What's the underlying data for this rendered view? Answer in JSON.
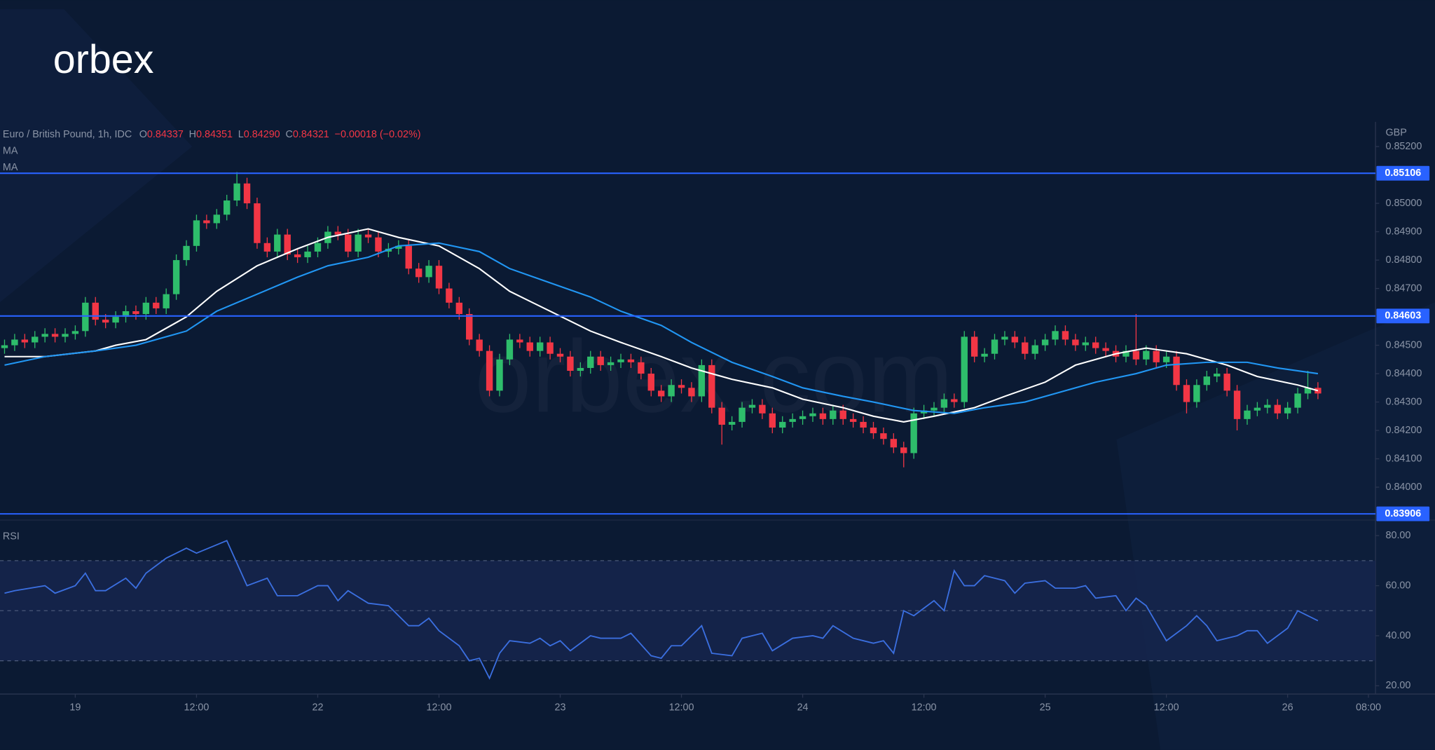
{
  "logo": "orbex",
  "watermark": "orbex.com",
  "chart_data": [
    {
      "type": "candlestick",
      "title": "Euro / British Pound, 1h, IDC",
      "readout": [
        {
          "label": "O",
          "value": "0.84337"
        },
        {
          "label": "H",
          "value": "0.84351"
        },
        {
          "label": "L",
          "value": "0.84290"
        },
        {
          "label": "C",
          "value": "0.84321"
        }
      ],
      "change": "−0.00018 (−0.02%)",
      "y_label": "GBP",
      "xlim": [
        -0.45,
        135.7
      ],
      "ylim": [
        0.83884,
        0.85287
      ],
      "yticks": [
        {
          "value": 0.852,
          "label": "0.85200"
        },
        {
          "value": 0.85,
          "label": "0.85000"
        },
        {
          "value": 0.849,
          "label": "0.84900"
        },
        {
          "value": 0.848,
          "label": "0.84800"
        },
        {
          "value": 0.847,
          "label": "0.84700"
        },
        {
          "value": 0.845,
          "label": "0.84500"
        },
        {
          "value": 0.844,
          "label": "0.84400"
        },
        {
          "value": 0.843,
          "label": "0.84300"
        },
        {
          "value": 0.842,
          "label": "0.84200"
        },
        {
          "value": 0.841,
          "label": "0.84100"
        },
        {
          "value": 0.84,
          "label": "0.84000"
        }
      ],
      "hlines": [
        {
          "value": 0.85106,
          "color": "#2962ff"
        },
        {
          "value": 0.84603,
          "color": "#2962ff"
        },
        {
          "value": 0.83906,
          "color": "#2962ff"
        }
      ],
      "candles": {
        "up_color": "#2ebd6b",
        "down_color": "#f23645",
        "open": [
          0.8449,
          0.845,
          0.8452,
          0.8451,
          0.8453,
          0.8454,
          0.8453,
          0.8454,
          0.8455,
          0.8465,
          0.8459,
          0.8458,
          0.846,
          0.8462,
          0.8461,
          0.8465,
          0.8463,
          0.8468,
          0.848,
          0.8485,
          0.8494,
          0.8493,
          0.8496,
          0.8501,
          0.8507,
          0.85,
          0.8486,
          0.8483,
          0.8489,
          0.8482,
          0.8481,
          0.8483,
          0.8486,
          0.849,
          0.8489,
          0.8483,
          0.8489,
          0.8488,
          0.8483,
          0.8484,
          0.8485,
          0.8477,
          0.8474,
          0.8478,
          0.847,
          0.8465,
          0.8461,
          0.8452,
          0.8448,
          0.8434,
          0.8445,
          0.8452,
          0.8451,
          0.8448,
          0.8451,
          0.8447,
          0.8446,
          0.8441,
          0.8442,
          0.8446,
          0.8443,
          0.8444,
          0.8445,
          0.8444,
          0.844,
          0.8434,
          0.8432,
          0.8436,
          0.8435,
          0.8432,
          0.8443,
          0.8428,
          0.8422,
          0.8423,
          0.8428,
          0.8429,
          0.8426,
          0.8421,
          0.8423,
          0.8424,
          0.8425,
          0.8426,
          0.8424,
          0.8427,
          0.8424,
          0.8423,
          0.8421,
          0.8419,
          0.8417,
          0.8414,
          0.8412,
          0.8426,
          0.8427,
          0.8428,
          0.8431,
          0.843,
          0.8453,
          0.8446,
          0.8447,
          0.8452,
          0.8453,
          0.8451,
          0.8447,
          0.845,
          0.8452,
          0.8455,
          0.8452,
          0.845,
          0.8451,
          0.8449,
          0.8448,
          0.8446,
          0.8448,
          0.8445,
          0.8448,
          0.8444,
          0.8446,
          0.8436,
          0.843,
          0.8436,
          0.8439,
          0.844,
          0.8434,
          0.8424,
          0.8427,
          0.8428,
          0.8429,
          0.8426,
          0.8428,
          0.8433,
          0.8435
        ],
        "high": [
          0.8452,
          0.8454,
          0.8454,
          0.8455,
          0.8456,
          0.8456,
          0.8456,
          0.8457,
          0.8467,
          0.8467,
          0.8461,
          0.8462,
          0.8464,
          0.8464,
          0.8467,
          0.8467,
          0.847,
          0.8482,
          0.8487,
          0.8496,
          0.8496,
          0.8498,
          0.8503,
          0.8511,
          0.8509,
          0.8502,
          0.8488,
          0.8491,
          0.8491,
          0.8484,
          0.8485,
          0.8488,
          0.8492,
          0.8492,
          0.8491,
          0.8491,
          0.8491,
          0.849,
          0.8486,
          0.8487,
          0.8487,
          0.8479,
          0.848,
          0.848,
          0.8472,
          0.8467,
          0.8463,
          0.8454,
          0.845,
          0.8447,
          0.8454,
          0.8454,
          0.8453,
          0.8453,
          0.8453,
          0.8449,
          0.8448,
          0.8444,
          0.8448,
          0.8448,
          0.8446,
          0.8447,
          0.8447,
          0.8446,
          0.8442,
          0.8436,
          0.8438,
          0.8438,
          0.8437,
          0.8445,
          0.8445,
          0.843,
          0.8425,
          0.843,
          0.8431,
          0.8431,
          0.8428,
          0.8425,
          0.8426,
          0.8427,
          0.8428,
          0.8428,
          0.8429,
          0.8429,
          0.8426,
          0.8425,
          0.8423,
          0.8421,
          0.8419,
          0.8416,
          0.8428,
          0.8429,
          0.843,
          0.8433,
          0.8433,
          0.8455,
          0.8455,
          0.8449,
          0.8454,
          0.8455,
          0.8455,
          0.8453,
          0.8452,
          0.8454,
          0.8457,
          0.8457,
          0.8454,
          0.8453,
          0.8453,
          0.8451,
          0.845,
          0.845,
          0.8461,
          0.845,
          0.845,
          0.8448,
          0.8448,
          0.8438,
          0.8438,
          0.8441,
          0.8442,
          0.8442,
          0.8436,
          0.8429,
          0.843,
          0.8431,
          0.8431,
          0.843,
          0.8435,
          0.8441,
          0.8437
        ],
        "low": [
          0.8447,
          0.8448,
          0.8449,
          0.8449,
          0.8451,
          0.8451,
          0.8451,
          0.8452,
          0.8453,
          0.8457,
          0.8456,
          0.8456,
          0.8458,
          0.8459,
          0.8459,
          0.8461,
          0.8461,
          0.8466,
          0.8478,
          0.8483,
          0.8491,
          0.8491,
          0.8494,
          0.8499,
          0.8498,
          0.8484,
          0.8481,
          0.8481,
          0.848,
          0.8479,
          0.8479,
          0.8481,
          0.8484,
          0.8487,
          0.8481,
          0.8481,
          0.8486,
          0.8481,
          0.8481,
          0.8482,
          0.8475,
          0.8472,
          0.8472,
          0.8468,
          0.8463,
          0.8459,
          0.845,
          0.8446,
          0.8432,
          0.8432,
          0.8443,
          0.8449,
          0.8446,
          0.8446,
          0.8445,
          0.8444,
          0.8439,
          0.8439,
          0.844,
          0.8441,
          0.8441,
          0.8442,
          0.8442,
          0.8438,
          0.8432,
          0.843,
          0.843,
          0.8433,
          0.843,
          0.843,
          0.8426,
          0.8415,
          0.842,
          0.8421,
          0.8426,
          0.8424,
          0.8419,
          0.8419,
          0.8421,
          0.8422,
          0.8423,
          0.8422,
          0.8422,
          0.8422,
          0.8421,
          0.8419,
          0.8417,
          0.8415,
          0.8412,
          0.8407,
          0.841,
          0.8424,
          0.8425,
          0.8426,
          0.8428,
          0.8428,
          0.8444,
          0.8444,
          0.8445,
          0.845,
          0.8449,
          0.8445,
          0.8445,
          0.8448,
          0.845,
          0.845,
          0.8448,
          0.8448,
          0.8447,
          0.8446,
          0.8444,
          0.8444,
          0.8443,
          0.8443,
          0.8442,
          0.8442,
          0.8434,
          0.8426,
          0.8428,
          0.8434,
          0.8437,
          0.8432,
          0.842,
          0.8422,
          0.8425,
          0.8426,
          0.8424,
          0.8424,
          0.8426,
          0.8431,
          0.8431
        ],
        "close": [
          0.845,
          0.8452,
          0.8451,
          0.8453,
          0.8454,
          0.8453,
          0.8454,
          0.8455,
          0.8465,
          0.8459,
          0.8458,
          0.846,
          0.8462,
          0.8461,
          0.8465,
          0.8463,
          0.8468,
          0.848,
          0.8485,
          0.8494,
          0.8493,
          0.8496,
          0.8501,
          0.8507,
          0.85,
          0.8486,
          0.8483,
          0.8489,
          0.8482,
          0.8481,
          0.8483,
          0.8486,
          0.849,
          0.8489,
          0.8483,
          0.8489,
          0.8488,
          0.8483,
          0.8484,
          0.8485,
          0.8477,
          0.8474,
          0.8478,
          0.847,
          0.8465,
          0.8461,
          0.8452,
          0.8448,
          0.8434,
          0.8445,
          0.8452,
          0.8451,
          0.8448,
          0.8451,
          0.8447,
          0.8446,
          0.8441,
          0.8442,
          0.8446,
          0.8443,
          0.8444,
          0.8445,
          0.8444,
          0.844,
          0.8434,
          0.8432,
          0.8436,
          0.8435,
          0.8432,
          0.8443,
          0.8428,
          0.8422,
          0.8423,
          0.8428,
          0.8429,
          0.8426,
          0.8421,
          0.8423,
          0.8424,
          0.8425,
          0.8426,
          0.8424,
          0.8427,
          0.8424,
          0.8423,
          0.8421,
          0.8419,
          0.8417,
          0.8414,
          0.8412,
          0.8426,
          0.8427,
          0.8428,
          0.8431,
          0.843,
          0.8453,
          0.8446,
          0.8447,
          0.8452,
          0.8453,
          0.8451,
          0.8447,
          0.845,
          0.8452,
          0.8455,
          0.8452,
          0.845,
          0.8451,
          0.8449,
          0.8448,
          0.8446,
          0.8448,
          0.8445,
          0.8448,
          0.8444,
          0.8446,
          0.8436,
          0.843,
          0.8436,
          0.8439,
          0.844,
          0.8434,
          0.8424,
          0.8427,
          0.8428,
          0.8429,
          0.8426,
          0.8428,
          0.8433,
          0.8435,
          0.8433
        ]
      },
      "series": [
        {
          "name": "MA",
          "color": "#ffffff",
          "x": [
            0,
            4,
            9,
            11,
            14,
            18,
            21,
            25,
            29,
            32,
            36,
            39,
            43,
            47,
            50,
            54,
            58,
            61,
            65,
            68,
            72,
            76,
            79,
            83,
            86,
            89,
            92,
            96,
            99,
            103,
            106,
            110,
            113,
            117,
            121,
            124,
            128,
            130
          ],
          "values": [
            0.8446,
            0.8446,
            0.8448,
            0.845,
            0.8452,
            0.846,
            0.8469,
            0.8478,
            0.8484,
            0.8488,
            0.8491,
            0.8488,
            0.8485,
            0.8477,
            0.8469,
            0.8462,
            0.8455,
            0.8451,
            0.8446,
            0.8442,
            0.8438,
            0.8435,
            0.8431,
            0.8428,
            0.8425,
            0.8423,
            0.8425,
            0.8428,
            0.8432,
            0.8437,
            0.8443,
            0.8447,
            0.8449,
            0.8447,
            0.8443,
            0.8439,
            0.8436,
            0.8434
          ]
        },
        {
          "name": "MA",
          "color": "#2196f3",
          "x": [
            0,
            4,
            9,
            13,
            18,
            21,
            25,
            29,
            32,
            36,
            39,
            43,
            47,
            50,
            54,
            58,
            61,
            65,
            68,
            72,
            76,
            79,
            83,
            86,
            90,
            94,
            97,
            101,
            105,
            108,
            112,
            115,
            119,
            123,
            126,
            130
          ],
          "values": [
            0.8443,
            0.8446,
            0.8448,
            0.845,
            0.8455,
            0.8462,
            0.8468,
            0.8474,
            0.8478,
            0.8481,
            0.8485,
            0.8486,
            0.8483,
            0.8477,
            0.8472,
            0.8467,
            0.8462,
            0.8457,
            0.8451,
            0.8444,
            0.8439,
            0.8435,
            0.8432,
            0.843,
            0.8427,
            0.8426,
            0.8428,
            0.843,
            0.8434,
            0.8437,
            0.844,
            0.8443,
            0.8444,
            0.8444,
            0.8442,
            0.844
          ]
        }
      ]
    },
    {
      "type": "line",
      "xlim": [
        -0.45,
        135.7
      ],
      "ylim": [
        16.7,
        86.2
      ],
      "yticks": [
        {
          "value": 80,
          "label": "80.00"
        },
        {
          "value": 60,
          "label": "60.00"
        },
        {
          "value": 40,
          "label": "40.00"
        },
        {
          "value": 20,
          "label": "20.00"
        }
      ],
      "band": [
        30,
        70
      ],
      "levels": [
        70,
        50,
        30
      ],
      "xticks": [
        {
          "value": 7,
          "label": "19"
        },
        {
          "value": 19,
          "label": "12:00"
        },
        {
          "value": 31,
          "label": "22"
        },
        {
          "value": 43,
          "label": "12:00"
        },
        {
          "value": 55,
          "label": "23"
        },
        {
          "value": 67,
          "label": "12:00"
        },
        {
          "value": 79,
          "label": "24"
        },
        {
          "value": 91,
          "label": "12:00"
        },
        {
          "value": 103,
          "label": "25"
        },
        {
          "value": 115,
          "label": "12:00"
        },
        {
          "value": 127,
          "label": "26"
        },
        {
          "value": 135,
          "label": "08:00"
        }
      ],
      "series": [
        {
          "name": "RSI",
          "color": "#3b6fe0",
          "x": [
            0,
            1,
            4,
            5,
            7,
            8,
            9,
            10,
            12,
            13,
            14,
            16,
            18,
            19,
            22,
            24,
            26,
            27,
            29,
            31,
            32,
            33,
            34,
            36,
            38,
            40,
            41,
            42,
            43,
            45,
            46,
            47,
            48,
            49,
            50,
            52,
            53,
            54,
            55,
            56,
            58,
            59,
            61,
            62,
            64,
            65,
            66,
            67,
            69,
            70,
            72,
            73,
            75,
            76,
            78,
            80,
            81,
            82,
            84,
            86,
            87,
            88,
            89,
            90,
            92,
            93,
            94,
            95,
            96,
            97,
            99,
            100,
            101,
            103,
            104,
            106,
            107,
            108,
            110,
            111,
            112,
            113,
            115,
            117,
            118,
            119,
            120,
            122,
            123,
            124,
            125,
            127,
            128,
            130
          ],
          "values": [
            57,
            58,
            60,
            57,
            60,
            65,
            58,
            58,
            63,
            59,
            65,
            71,
            75,
            73,
            78,
            60,
            63,
            56,
            56,
            60,
            60,
            54,
            58,
            53,
            52,
            44,
            44,
            47,
            42,
            36,
            30,
            31,
            23,
            33,
            38,
            37,
            39,
            36,
            38,
            34,
            40,
            39,
            39,
            41,
            32,
            31,
            36,
            36,
            44,
            33,
            32,
            39,
            41,
            34,
            39,
            40,
            39,
            44,
            39,
            37,
            38,
            33,
            50,
            48,
            54,
            50,
            66,
            60,
            60,
            64,
            62,
            57,
            61,
            62,
            59,
            59,
            60,
            55,
            56,
            50,
            55,
            52,
            38,
            44,
            48,
            44,
            38,
            40,
            42,
            42,
            37,
            43,
            50,
            46
          ]
        }
      ]
    }
  ]
}
